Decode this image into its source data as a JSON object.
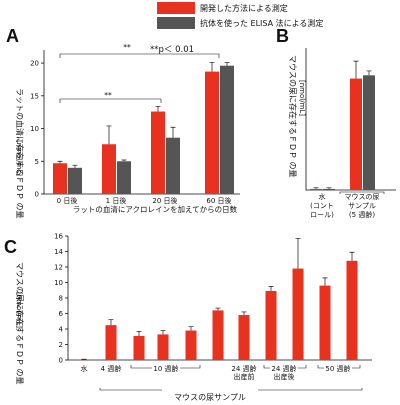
{
  "legend": {
    "items": [
      {
        "label": "開発した方法による測定",
        "color": "#e8311f"
      },
      {
        "label": "抗体を使った ELISA 法による測定",
        "color": "#555555"
      }
    ]
  },
  "colors": {
    "red": "#e8311f",
    "gray": "#555555"
  },
  "chart_data": [
    {
      "panel": "A",
      "type": "bar",
      "categories": [
        "0 日後",
        "1 日後",
        "20 日後",
        "60 日後"
      ],
      "series": [
        {
          "name": "開発した方法による測定",
          "values": [
            4.7,
            7.6,
            12.6,
            18.7
          ],
          "errors": [
            0.3,
            2.8,
            0.8,
            1.4
          ]
        },
        {
          "name": "抗体を使った ELISA 法による測定",
          "values": [
            4.0,
            5.0,
            8.6,
            19.6
          ],
          "errors": [
            0.4,
            0.2,
            1.6,
            0.5
          ]
        }
      ],
      "ylabel": "ラットの血清に存在するＦＤＰ の量",
      "yunit": "[nmol/mL]",
      "xlabel": "ラットの血清にアクロレインを加えてからの日数",
      "ylim": [
        0,
        22
      ],
      "yticks": [
        0,
        5,
        10,
        15,
        20
      ],
      "annotations": {
        "sig": "**",
        "pvalue": "**p＜ 0.01"
      }
    },
    {
      "panel": "B",
      "type": "bar",
      "categories": [
        "水\n(コント\nロール)",
        "マウスの尿\nサンプル\n(5 週齢)"
      ],
      "series": [
        {
          "name": "開発した方法による測定",
          "values": [
            0.05,
            5.1
          ],
          "errors": [
            0.05,
            0.8
          ]
        },
        {
          "name": "抗体を使った ELISA 法による測定",
          "values": [
            0.05,
            5.25
          ],
          "errors": [
            0.05,
            0.2
          ]
        }
      ],
      "ylabel": "マウスの尿に存在するＦＤＰ の量",
      "yunit": "[nmol/mL]",
      "ylim": [
        0,
        6.5
      ]
    },
    {
      "panel": "C",
      "type": "bar",
      "categories": [
        "水",
        "4 週齢",
        "10 週齢a",
        "10 週齢b",
        "10 週齢c",
        "10 週齢d",
        "24 週齢 出産前",
        "24 週齢 出産後a",
        "24 週齢 出産後b",
        "50 週齢a",
        "50 週齢b"
      ],
      "series": [
        {
          "name": "開発した方法による測定",
          "values": [
            0.05,
            4.5,
            3.1,
            3.3,
            3.8,
            6.4,
            5.8,
            8.9,
            11.8,
            9.6,
            12.8
          ],
          "errors": [
            0.05,
            0.7,
            0.6,
            0.5,
            0.5,
            0.3,
            0.4,
            0.6,
            3.9,
            1.0,
            1.1
          ]
        }
      ],
      "ylabel": "マウスの尿に存在するＦＤＰ の量",
      "yunit": "[nmol/mL]",
      "xlabel": "マウスの尿サンプル",
      "group_labels": [
        {
          "text": "水"
        },
        {
          "text": "4 週齢"
        },
        {
          "text": "10 週齢"
        },
        {
          "text": "24 週齢\n出産前"
        },
        {
          "text": "24 週齢\n出産後"
        },
        {
          "text": "50 週齢"
        }
      ],
      "ylim": [
        0,
        16
      ],
      "yticks": [
        0,
        2,
        4,
        6,
        8,
        10,
        12,
        14,
        16
      ]
    }
  ]
}
